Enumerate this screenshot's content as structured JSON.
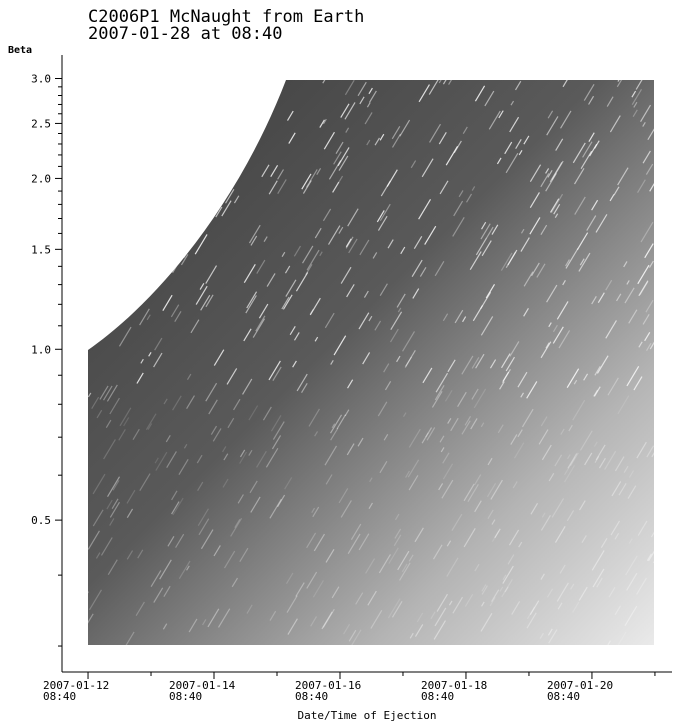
{
  "chart_data": {
    "type": "image",
    "title": "C2006P1 McNaught from Earth",
    "subtitle": "2007-01-28 at 08:40",
    "y_label": "Beta",
    "x_label": "Date/Time of Ejection",
    "y_scale": "log",
    "ylim": [
      0.27,
      3.3
    ],
    "yticks": [
      {
        "value": 0.5,
        "label": "0.5"
      },
      {
        "value": 1.0,
        "label": "1.0"
      },
      {
        "value": 1.5,
        "label": "1.5"
      },
      {
        "value": 2.0,
        "label": "2.0"
      },
      {
        "value": 2.5,
        "label": "2.5"
      },
      {
        "value": 3.0,
        "label": "3.0"
      }
    ],
    "yminorticks": [
      0.3,
      0.4,
      0.6,
      0.7,
      0.8,
      0.9,
      1.1,
      1.2,
      1.3,
      1.4,
      1.6,
      1.7,
      1.8,
      1.9,
      2.1,
      2.2,
      2.3,
      2.4,
      2.6,
      2.7,
      2.8,
      2.9
    ],
    "xlim": [
      "2007-01-11T22:45",
      "2007-01-21T15:10"
    ],
    "xticks": [
      {
        "value": "2007-01-12T08:40",
        "label": "2007-01-12\n08:40"
      },
      {
        "value": "2007-01-14T08:40",
        "label": "2007-01-14\n08:40"
      },
      {
        "value": "2007-01-16T08:40",
        "label": "2007-01-16\n08:40"
      },
      {
        "value": "2007-01-18T08:40",
        "label": "2007-01-18\n08:40"
      },
      {
        "value": "2007-01-20T08:40",
        "label": "2007-01-20\n08:40"
      }
    ],
    "xminorticks": [
      "2007-01-13T08:40",
      "2007-01-15T08:40",
      "2007-01-17T08:40",
      "2007-01-19T08:40",
      "2007-01-21T08:40"
    ]
  }
}
